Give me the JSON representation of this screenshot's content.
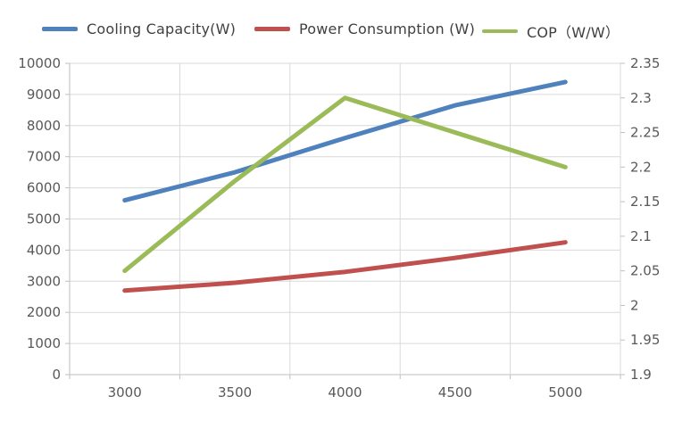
{
  "legend": [
    {
      "label": "Cooling Capacity(W)",
      "color": "#4F81BD"
    },
    {
      "label": "Power Consumption (W)",
      "color": "#C0504D"
    },
    {
      "label": "COP（W/W）",
      "color": "#9BBB59"
    }
  ],
  "chart_data": {
    "type": "line",
    "title": "",
    "xlabel": "",
    "ylabel_left": "",
    "ylabel_right": "",
    "legend_position": "top",
    "grid": true,
    "categories": [
      "3000",
      "3500",
      "4000",
      "4500",
      "5000"
    ],
    "series": [
      {
        "name": "Cooling Capacity(W)",
        "axis": "left",
        "color": "#4F81BD",
        "values": [
          5600,
          6500,
          7600,
          8650,
          9400
        ]
      },
      {
        "name": "Power Consumption (W)",
        "axis": "left",
        "color": "#C0504D",
        "values": [
          2700,
          2950,
          3300,
          3750,
          4250
        ]
      },
      {
        "name": "COP（W/W）",
        "axis": "right",
        "color": "#9BBB59",
        "values": [
          2.05,
          2.18,
          2.3,
          2.25,
          2.2
        ]
      }
    ],
    "left_axis": {
      "min": 0,
      "max": 10000,
      "step": 1000,
      "ticks": [
        "10000",
        "9000",
        "8000",
        "7000",
        "6000",
        "5000",
        "4000",
        "3000",
        "2000",
        "1000",
        "0"
      ]
    },
    "right_axis": {
      "min": 1.9,
      "max": 2.35,
      "step": 0.05,
      "ticks": [
        "2.35",
        "2.3",
        "2.25",
        "2.2",
        "2.15",
        "2.1",
        "2.05",
        "2",
        "1.95",
        "1.9"
      ]
    },
    "colors": {
      "gridline": "#D9D9D9",
      "axis_line": "#BFBFBF",
      "tick_label": "#595959",
      "background": "#FFFFFF"
    }
  }
}
